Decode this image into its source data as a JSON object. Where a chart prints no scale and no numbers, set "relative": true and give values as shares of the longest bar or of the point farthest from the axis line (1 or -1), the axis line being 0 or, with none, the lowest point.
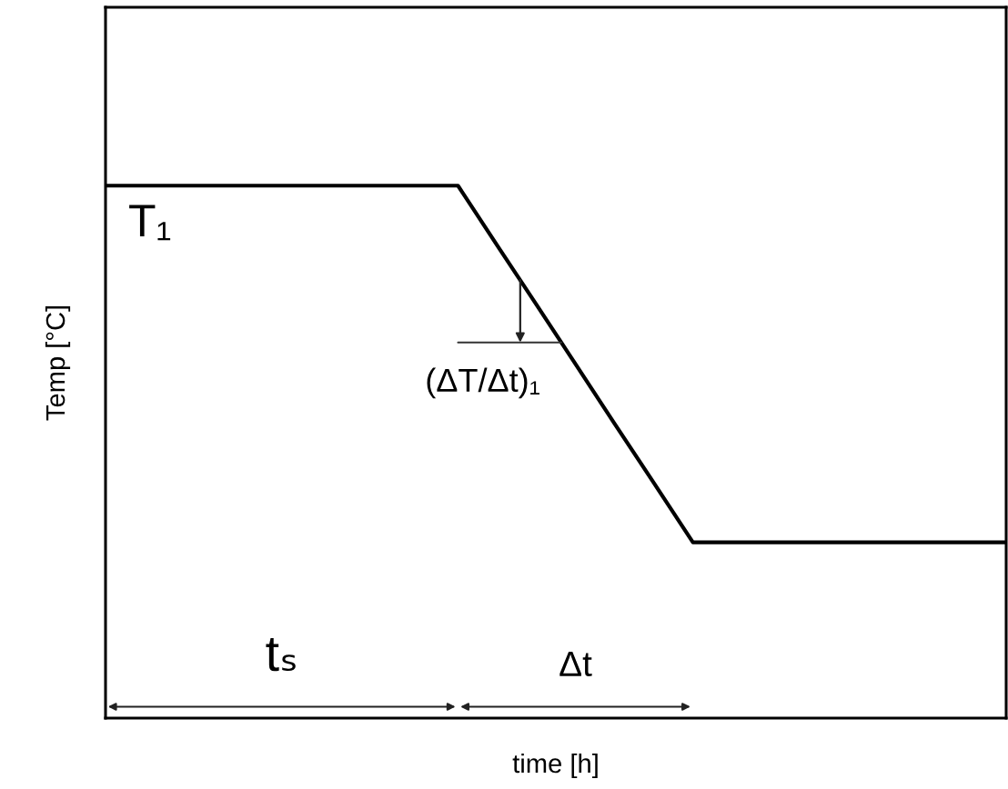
{
  "chart_data": {
    "type": "line",
    "relative": true,
    "tick_labels": false,
    "xlabel": "time [h]",
    "ylabel": "Temp [°C]",
    "categories": [
      null,
      null,
      null,
      null,
      null,
      null,
      null,
      null,
      null,
      null,
      null,
      null,
      null,
      null,
      null,
      null,
      null,
      null,
      null,
      null,
      null,
      null,
      null,
      null
    ],
    "series": [
      {
        "color": "#000000",
        "values": [
          1,
          1,
          1,
          1,
          1,
          1,
          1,
          1,
          1,
          1,
          0.888,
          0.777,
          0.665,
          0.553,
          0.442,
          0.33,
          0.33,
          0.33,
          0.33,
          0.33,
          0.33,
          0.33,
          0.33,
          0.33
        ]
      }
    ],
    "annotations": [
      "T₁",
      "(ΔT/Δt)₁",
      "tₛ",
      "Δt"
    ]
  }
}
